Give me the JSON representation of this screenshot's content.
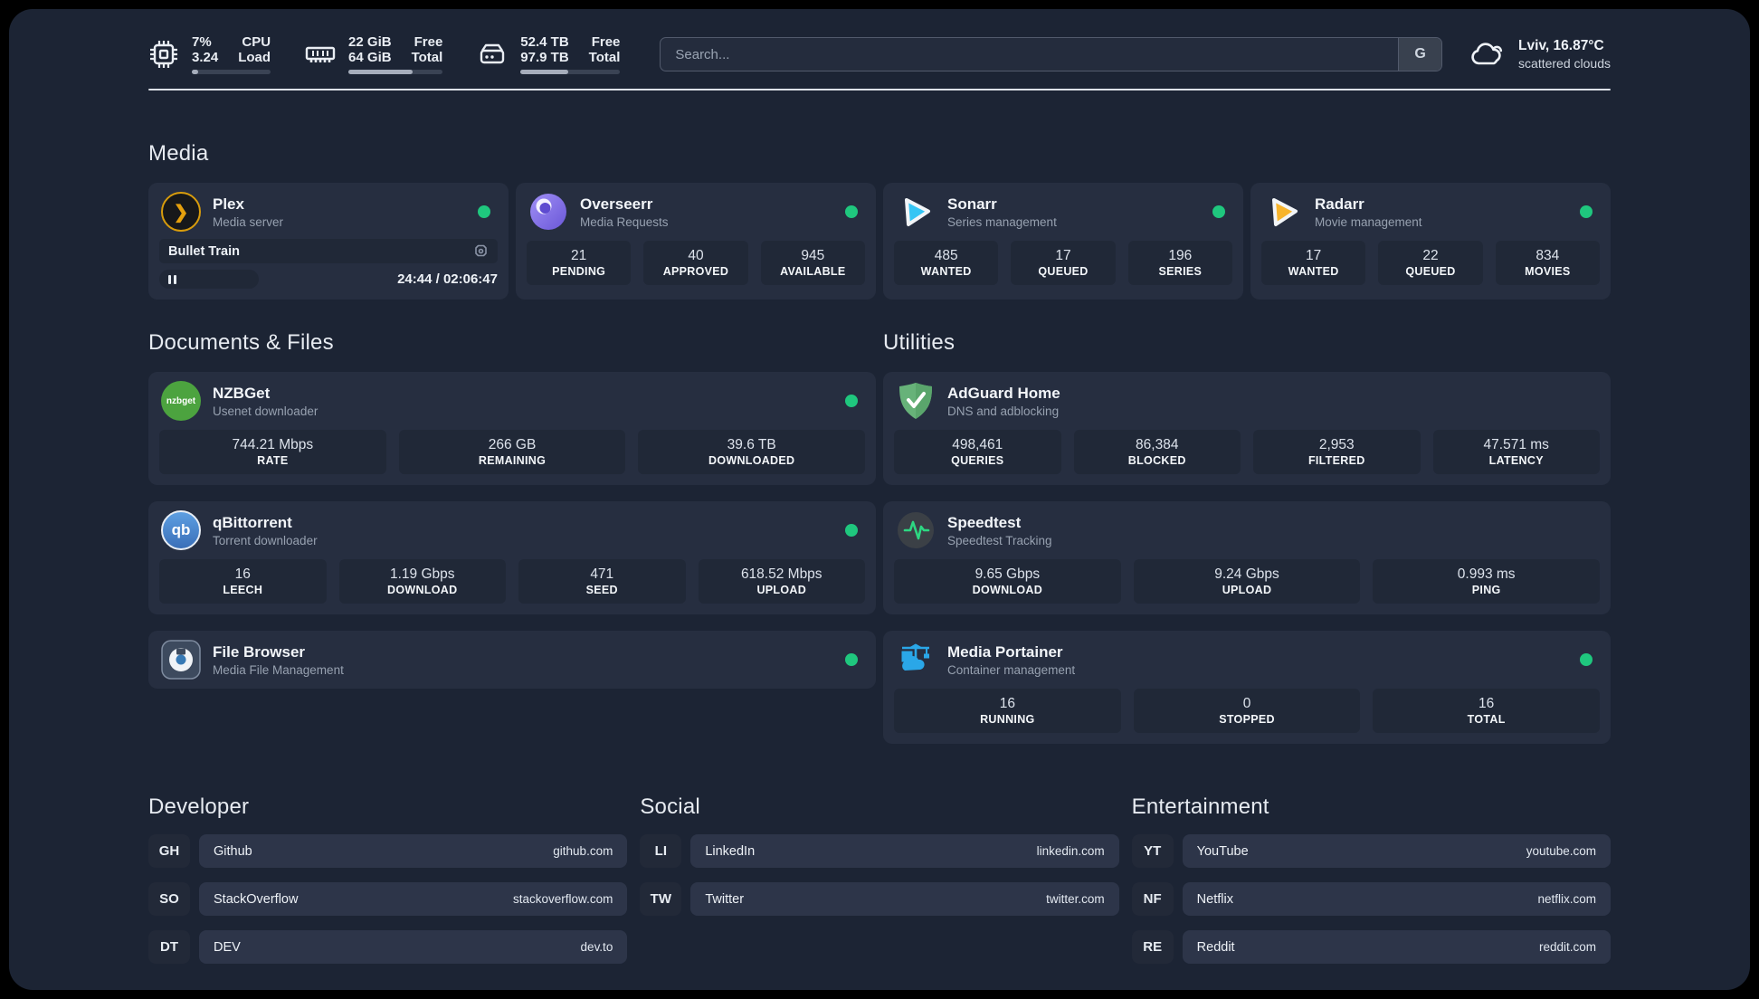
{
  "colors": {
    "page_bg": "#1c2434",
    "card_bg": "#262e40",
    "tile_bg": "#202837",
    "online_green": "#1fc77e",
    "plex_amber": "#e5a00d",
    "sonarr_cyan": "#35c5f4",
    "radarr_amber": "#f7b42c",
    "portainer_blue": "#2aa7e8",
    "adguard_green": "#67b279",
    "speedtest_pulse": "#2dd882"
  },
  "topbar": {
    "cpu": {
      "usage": "7%",
      "load": "3.24",
      "label_top": "CPU",
      "label_bottom": "Load",
      "progress": 8
    },
    "memory": {
      "free": "22 GiB",
      "total": "64 GiB",
      "label_top": "Free",
      "label_bottom": "Total",
      "progress": 68
    },
    "disk": {
      "free": "52.4 TB",
      "total": "97.9 TB",
      "label_top": "Free",
      "label_bottom": "Total",
      "progress": 48
    },
    "search": {
      "placeholder": "Search...",
      "button_label": "G"
    },
    "weather": {
      "location": "Lviv, 16.87°C",
      "condition": "scattered clouds"
    }
  },
  "media": {
    "title": "Media",
    "plex": {
      "name": "Plex",
      "desc": "Media server",
      "logo_text": "❯",
      "player": {
        "title": "Bullet Train",
        "time": "24:44 / 02:06:47"
      }
    },
    "overseerr": {
      "name": "Overseerr",
      "desc": "Media Requests",
      "stats": [
        {
          "value": "21",
          "label": "PENDING"
        },
        {
          "value": "40",
          "label": "APPROVED"
        },
        {
          "value": "945",
          "label": "AVAILABLE"
        }
      ]
    },
    "sonarr": {
      "name": "Sonarr",
      "desc": "Series management",
      "stats": [
        {
          "value": "485",
          "label": "WANTED"
        },
        {
          "value": "17",
          "label": "QUEUED"
        },
        {
          "value": "196",
          "label": "SERIES"
        }
      ]
    },
    "radarr": {
      "name": "Radarr",
      "desc": "Movie management",
      "stats": [
        {
          "value": "17",
          "label": "WANTED"
        },
        {
          "value": "22",
          "label": "QUEUED"
        },
        {
          "value": "834",
          "label": "MOVIES"
        }
      ]
    }
  },
  "documents": {
    "title": "Documents & Files",
    "nzbget": {
      "name": "NZBGet",
      "desc": "Usenet downloader",
      "logo_text": "nzbget",
      "stats": [
        {
          "value": "744.21 Mbps",
          "label": "RATE"
        },
        {
          "value": "266 GB",
          "label": "REMAINING"
        },
        {
          "value": "39.6 TB",
          "label": "DOWNLOADED"
        }
      ]
    },
    "qbittorrent": {
      "name": "qBittorrent",
      "desc": "Torrent downloader",
      "logo_text": "qb",
      "stats": [
        {
          "value": "16",
          "label": "LEECH"
        },
        {
          "value": "1.19 Gbps",
          "label": "DOWNLOAD"
        },
        {
          "value": "471",
          "label": "SEED"
        },
        {
          "value": "618.52 Mbps",
          "label": "UPLOAD"
        }
      ]
    },
    "filebrowser": {
      "name": "File Browser",
      "desc": "Media File Management"
    }
  },
  "utilities": {
    "title": "Utilities",
    "adguard": {
      "name": "AdGuard Home",
      "desc": "DNS and adblocking",
      "stats": [
        {
          "value": "498,461",
          "label": "QUERIES"
        },
        {
          "value": "86,384",
          "label": "BLOCKED"
        },
        {
          "value": "2,953",
          "label": "FILTERED"
        },
        {
          "value": "47.571 ms",
          "label": "LATENCY"
        }
      ]
    },
    "speedtest": {
      "name": "Speedtest",
      "desc": "Speedtest Tracking",
      "stats": [
        {
          "value": "9.65 Gbps",
          "label": "DOWNLOAD"
        },
        {
          "value": "9.24 Gbps",
          "label": "UPLOAD"
        },
        {
          "value": "0.993 ms",
          "label": "PING"
        }
      ]
    },
    "portainer": {
      "name": "Media Portainer",
      "desc": "Container management",
      "stats": [
        {
          "value": "16",
          "label": "RUNNING"
        },
        {
          "value": "0",
          "label": "STOPPED"
        },
        {
          "value": "16",
          "label": "TOTAL"
        }
      ]
    }
  },
  "bookmarks": {
    "groups": [
      {
        "title": "Developer",
        "links": [
          {
            "abbr": "GH",
            "name": "Github",
            "url": "github.com"
          },
          {
            "abbr": "SO",
            "name": "StackOverflow",
            "url": "stackoverflow.com"
          },
          {
            "abbr": "DT",
            "name": "DEV",
            "url": "dev.to"
          }
        ]
      },
      {
        "title": "Social",
        "links": [
          {
            "abbr": "LI",
            "name": "LinkedIn",
            "url": "linkedin.com"
          },
          {
            "abbr": "TW",
            "name": "Twitter",
            "url": "twitter.com"
          }
        ]
      },
      {
        "title": "Entertainment",
        "links": [
          {
            "abbr": "YT",
            "name": "YouTube",
            "url": "youtube.com"
          },
          {
            "abbr": "NF",
            "name": "Netflix",
            "url": "netflix.com"
          },
          {
            "abbr": "RE",
            "name": "Reddit",
            "url": "reddit.com"
          }
        ]
      }
    ]
  }
}
